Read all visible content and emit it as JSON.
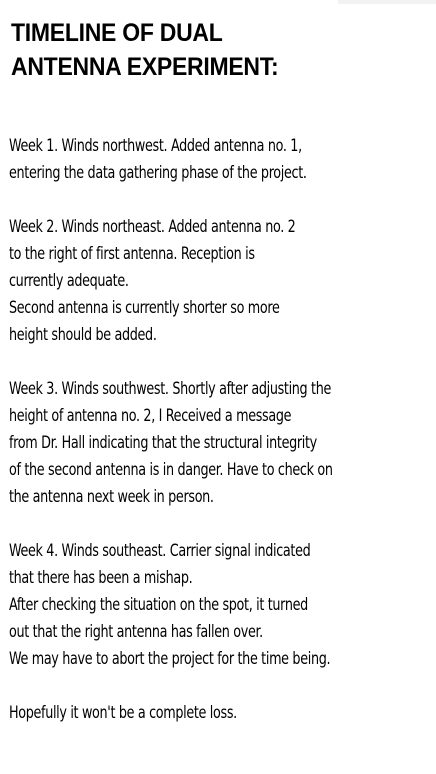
{
  "title": {
    "line1": "TIMELINE OF DUAL",
    "line2": "ANTENNA EXPERIMENT:"
  },
  "paragraphs": [
    {
      "lines": [
        "Week 1. Winds northwest. Added antenna no. 1,",
        "entering the data gathering phase of the project."
      ]
    },
    {
      "lines": [
        "Week 2. Winds northeast. Added antenna no. 2",
        "to the right of first antenna. Reception is",
        "currently adequate.",
        "Second antenna is currently shorter so more",
        "height should be added."
      ]
    },
    {
      "lines": [
        "Week 3. Winds southwest. Shortly after adjusting the",
        "height of antenna no. 2, I Received a message",
        "from Dr. Hall indicating that the structural integrity",
        "of the second antenna is in danger. Have to check on",
        "the antenna next week in person."
      ]
    },
    {
      "lines": [
        "Week 4. Winds southeast. Carrier signal indicated",
        "that there has been a mishap.",
        "After checking the situation on the spot, it turned",
        "out that the right antenna has fallen over.",
        "We may have to abort the project for the time being."
      ]
    },
    {
      "lines": [
        "Hopefully it won't be a complete loss."
      ]
    }
  ]
}
